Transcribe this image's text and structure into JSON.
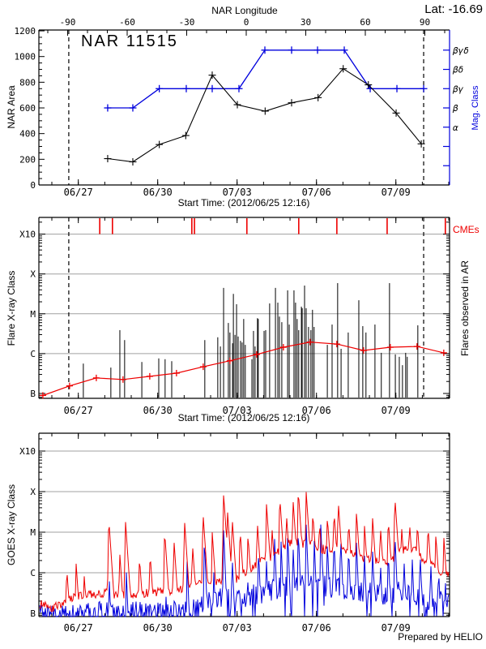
{
  "header": {
    "lat": "Lat: -16.69"
  },
  "panels": {
    "area": {
      "title": "NAR 11515",
      "top_label": "NAR Longitude",
      "ylabel": "NAR Area",
      "right_label": "Mag. Class",
      "caption": "Start Time: (2012/06/25 12:16)"
    },
    "flare": {
      "ylabel": "Flare X-ray Class",
      "right_label": "Flares observed in AR",
      "cme_label": "CMEs",
      "caption": "Start Time: (2012/06/25 12:16)"
    },
    "goes": {
      "ylabel": "GOES X-ray Class",
      "credit": "Prepared by HELIO"
    }
  },
  "colors": {
    "black": "#000000",
    "blue": "#0000dd",
    "red": "#ee0000",
    "grid": "#a0a0a0"
  },
  "time_axis": {
    "start_label": "2012/06/25 12:16",
    "span_days": 15.52,
    "major_ticks": [
      {
        "offset": 1.49,
        "label": "06/27"
      },
      {
        "offset": 4.49,
        "label": "06/30"
      },
      {
        "offset": 7.49,
        "label": "07/03"
      },
      {
        "offset": 10.49,
        "label": "07/06"
      },
      {
        "offset": 13.49,
        "label": "07/09"
      }
    ],
    "minor_first": 0.49,
    "minor_step_days": 1,
    "limb_line_offsets": [
      1.13,
      14.54
    ]
  },
  "chart_data": [
    {
      "type": "line",
      "title": "NAR 11515",
      "ylabel": "NAR Area",
      "ylim": [
        0,
        1200
      ],
      "y_major_step": 200,
      "y_minor_step": 50,
      "longitude_axis": {
        "label": "NAR Longitude",
        "ticks": [
          -90,
          -60,
          -30,
          0,
          30,
          60,
          90
        ],
        "minor_step": 10
      },
      "area_series": {
        "name": "NAR area",
        "color": "#000000",
        "offsets": [
          2.6,
          3.55,
          4.55,
          5.55,
          6.55,
          7.5,
          8.55,
          9.55,
          10.55,
          11.5,
          12.45,
          13.5,
          14.45
        ],
        "values": [
          205,
          180,
          315,
          385,
          855,
          625,
          575,
          640,
          680,
          905,
          780,
          560,
          320
        ]
      },
      "mag_series": {
        "name": "Magnetic class",
        "color": "#0000dd",
        "offsets": [
          2.6,
          3.55,
          4.55,
          5.57,
          6.55,
          7.56,
          8.54,
          9.55,
          10.53,
          11.54,
          12.52,
          13.53,
          14.54
        ],
        "values": [
          600,
          600,
          750,
          750,
          750,
          750,
          1050,
          1050,
          1050,
          1050,
          750,
          750,
          750
        ],
        "classes": [
          "β",
          "β",
          "βγ",
          "βγ",
          "βγ",
          "βγ",
          "βγδ",
          "βγδ",
          "βγδ",
          "βγδ",
          "βγ",
          "βγ",
          "βγ"
        ]
      },
      "mag_axis_ticks": [
        {
          "value": 1050,
          "label": "βγδ"
        },
        {
          "value": 900,
          "label": "βδ"
        },
        {
          "value": 750,
          "label": "βγ"
        },
        {
          "value": 600,
          "label": "β"
        },
        {
          "value": 450,
          "label": "α"
        },
        {
          "value": 300,
          "label": ""
        },
        {
          "value": 150,
          "label": ""
        }
      ]
    },
    {
      "type": "bar",
      "ylabel": "Flare X-ray Class",
      "decade_labels": [
        "B",
        "C",
        "M",
        "X",
        "X10"
      ],
      "y_range_decades": [
        -0.12,
        4.42
      ],
      "cme_offsets": [
        2.3,
        2.78,
        5.78,
        5.88,
        7.86,
        9.82,
        11.26,
        13.16,
        15.36
      ],
      "flares": [
        [
          1.68,
          0.75
        ],
        [
          2.72,
          0.65
        ],
        [
          3.06,
          1.59
        ],
        [
          3.24,
          1.34
        ],
        [
          3.89,
          0.79
        ],
        [
          4.53,
          0.88
        ],
        [
          4.77,
          0.86
        ],
        [
          5.02,
          0.81
        ],
        [
          6.27,
          1.34
        ],
        [
          6.76,
          1.41
        ],
        [
          6.86,
          1.18
        ],
        [
          6.98,
          2.65
        ],
        [
          7.16,
          1.77
        ],
        [
          7.22,
          1.53
        ],
        [
          7.32,
          1.26
        ],
        [
          7.35,
          2.5
        ],
        [
          7.41,
          1.47
        ],
        [
          7.47,
          2.24
        ],
        [
          7.53,
          1.43
        ],
        [
          7.62,
          1.32
        ],
        [
          7.68,
          1.28
        ],
        [
          7.74,
          1.87
        ],
        [
          7.8,
          1.22
        ],
        [
          8.05,
          0.86
        ],
        [
          8.11,
          1.57
        ],
        [
          8.17,
          1.18
        ],
        [
          8.26,
          1.89
        ],
        [
          8.29,
          1.87
        ],
        [
          8.51,
          1.57
        ],
        [
          8.57,
          1.59
        ],
        [
          8.72,
          2.26
        ],
        [
          8.94,
          2.65
        ],
        [
          9.03,
          2.28
        ],
        [
          9.09,
          1.93
        ],
        [
          9.18,
          1.79
        ],
        [
          9.4,
          2.59
        ],
        [
          9.46,
          1.73
        ],
        [
          9.64,
          2.59
        ],
        [
          9.7,
          2.28
        ],
        [
          9.76,
          1.87
        ],
        [
          9.82,
          1.59
        ],
        [
          9.92,
          2.18
        ],
        [
          9.95,
          2.14
        ],
        [
          10.04,
          2.71
        ],
        [
          10.1,
          2.14
        ],
        [
          10.19,
          1.67
        ],
        [
          10.28,
          1.59
        ],
        [
          10.34,
          2.1
        ],
        [
          10.4,
          1.67
        ],
        [
          10.9,
          1.22
        ],
        [
          11.08,
          1.73
        ],
        [
          11.29,
          2.77
        ],
        [
          11.42,
          1.12
        ],
        [
          11.69,
          1.53
        ],
        [
          12.09,
          2.34
        ],
        [
          12.24,
          1.69
        ],
        [
          12.36,
          1.53
        ],
        [
          12.7,
          1.73
        ],
        [
          12.94,
          1.02
        ],
        [
          13.25,
          2.77
        ],
        [
          13.47,
          0.98
        ],
        [
          13.62,
          0.92
        ],
        [
          13.74,
          0.71
        ],
        [
          13.86,
          1.02
        ],
        [
          13.92,
          0.92
        ],
        [
          14.32,
          1.71
        ]
      ],
      "index_curve": {
        "name": "daily flare index",
        "color": "#ee0000",
        "offsets": [
          0.15,
          1.16,
          2.17,
          3.18,
          4.19,
          5.2,
          6.21,
          7.22,
          8.23,
          9.24,
          10.25,
          11.26,
          12.27,
          13.28,
          14.29,
          15.3
        ],
        "decades": [
          -0.05,
          0.19,
          0.39,
          0.35,
          0.43,
          0.51,
          0.67,
          0.82,
          0.98,
          1.16,
          1.29,
          1.24,
          1.08,
          1.16,
          1.18,
          1.02
        ]
      }
    },
    {
      "type": "line",
      "ylabel": "GOES X-ray Class",
      "decade_labels": [
        "B",
        "C",
        "M",
        "X",
        "X10"
      ],
      "y_range_decades": [
        -0.08,
        4.44
      ],
      "noise_seed": 11515,
      "long_channel": {
        "name": "GOES long 1-8A",
        "color": "#ee0000",
        "envelope": [
          [
            0,
            0.25
          ],
          [
            0.5,
            0.12
          ],
          [
            1,
            0.3
          ],
          [
            1.5,
            0.42
          ],
          [
            2,
            0.48
          ],
          [
            2.5,
            0.5
          ],
          [
            3,
            0.45
          ],
          [
            3.5,
            0.45
          ],
          [
            4,
            0.5
          ],
          [
            4.5,
            0.52
          ],
          [
            5,
            0.55
          ],
          [
            5.5,
            0.62
          ],
          [
            6,
            0.7
          ],
          [
            6.5,
            0.78
          ],
          [
            7,
            0.82
          ],
          [
            7.3,
            0.75
          ],
          [
            7.6,
            0.95
          ],
          [
            8,
            1.1
          ],
          [
            8.3,
            1.25
          ],
          [
            8.6,
            1.3
          ],
          [
            9,
            1.5
          ],
          [
            9.3,
            1.65
          ],
          [
            9.6,
            1.8
          ],
          [
            10,
            1.7
          ],
          [
            10.3,
            1.75
          ],
          [
            10.6,
            1.6
          ],
          [
            11,
            1.55
          ],
          [
            11.3,
            1.6
          ],
          [
            11.6,
            1.5
          ],
          [
            12,
            1.45
          ],
          [
            12.3,
            1.35
          ],
          [
            12.6,
            1.3
          ],
          [
            13,
            1.35
          ],
          [
            13.3,
            1.25
          ],
          [
            13.6,
            1.5
          ],
          [
            13.9,
            1.6
          ],
          [
            14.2,
            1.55
          ],
          [
            14.5,
            1.35
          ],
          [
            14.8,
            1.2
          ],
          [
            15.1,
            1.05
          ],
          [
            15.52,
            0.9
          ]
        ],
        "spikes": [
          [
            1.05,
            1.15
          ],
          [
            1.4,
            1.3
          ],
          [
            1.7,
            1.05
          ],
          [
            2.64,
            2.35
          ],
          [
            3.05,
            1.55
          ],
          [
            3.27,
            2.3
          ],
          [
            3.8,
            1.4
          ],
          [
            4.2,
            1.5
          ],
          [
            4.75,
            2.05
          ],
          [
            5.1,
            1.85
          ],
          [
            5.5,
            2.32
          ],
          [
            5.8,
            1.75
          ],
          [
            6.2,
            2.5
          ],
          [
            6.55,
            2.0
          ],
          [
            6.98,
            2.95
          ],
          [
            7.12,
            2.6
          ],
          [
            7.3,
            2.4
          ],
          [
            7.6,
            2.1
          ],
          [
            7.9,
            1.95
          ],
          [
            8.25,
            2.3
          ],
          [
            8.6,
            2.7
          ],
          [
            8.8,
            2.2
          ],
          [
            9.1,
            2.9
          ],
          [
            9.35,
            2.5
          ],
          [
            9.6,
            2.85
          ],
          [
            9.8,
            3.06
          ],
          [
            10.1,
            3.0
          ],
          [
            10.35,
            2.5
          ],
          [
            10.6,
            2.3
          ],
          [
            10.9,
            2.4
          ],
          [
            11.15,
            2.55
          ],
          [
            11.31,
            2.8
          ],
          [
            11.7,
            2.3
          ],
          [
            12.0,
            2.5
          ],
          [
            12.3,
            2.2
          ],
          [
            12.6,
            2.45
          ],
          [
            12.9,
            2.2
          ],
          [
            13.2,
            2.35
          ],
          [
            13.45,
            2.9
          ],
          [
            13.7,
            2.2
          ],
          [
            14.0,
            2.3
          ],
          [
            14.3,
            2.25
          ],
          [
            14.7,
            2.2
          ],
          [
            15.0,
            1.95
          ],
          [
            15.3,
            1.9
          ]
        ]
      },
      "short_channel": {
        "name": "GOES short 0.5-4A",
        "color": "#0000dd",
        "envelope": [
          [
            0,
            -0.02
          ],
          [
            3,
            0.0
          ],
          [
            5,
            0.05
          ],
          [
            6,
            0.1
          ],
          [
            6.5,
            0.35
          ],
          [
            7,
            0.4
          ],
          [
            7.5,
            0.3
          ],
          [
            8,
            0.45
          ],
          [
            8.5,
            0.5
          ],
          [
            9,
            0.6
          ],
          [
            9.5,
            0.7
          ],
          [
            10,
            0.75
          ],
          [
            10.5,
            0.7
          ],
          [
            11,
            0.65
          ],
          [
            11.5,
            0.6
          ],
          [
            12,
            0.55
          ],
          [
            12.5,
            0.5
          ],
          [
            13,
            0.45
          ],
          [
            13.5,
            0.55
          ],
          [
            14,
            0.5
          ],
          [
            14.5,
            0.4
          ],
          [
            15,
            0.3
          ],
          [
            15.52,
            0.25
          ]
        ],
        "spikes": [
          [
            1.45,
            0.45
          ],
          [
            2.3,
            0.5
          ],
          [
            2.65,
            1.0
          ],
          [
            3.3,
            1.1
          ],
          [
            4.2,
            0.55
          ],
          [
            4.8,
            0.5
          ],
          [
            5.3,
            0.45
          ],
          [
            5.6,
            1.3
          ],
          [
            6.25,
            1.9
          ],
          [
            6.6,
            1.2
          ],
          [
            6.98,
            2.1
          ],
          [
            7.3,
            1.5
          ],
          [
            7.9,
            0.9
          ],
          [
            8.3,
            1.6
          ],
          [
            8.6,
            1.3
          ],
          [
            8.9,
            1.95
          ],
          [
            9.15,
            1.8
          ],
          [
            9.4,
            2.0
          ],
          [
            9.6,
            1.75
          ],
          [
            9.8,
            2.1
          ],
          [
            10.1,
            2.2
          ],
          [
            10.4,
            1.9
          ],
          [
            10.65,
            2.22
          ],
          [
            10.9,
            1.8
          ],
          [
            11.15,
            1.9
          ],
          [
            11.4,
            2.0
          ],
          [
            11.7,
            1.7
          ],
          [
            12.0,
            1.8
          ],
          [
            12.3,
            1.5
          ],
          [
            12.6,
            1.7
          ],
          [
            12.9,
            1.4
          ],
          [
            13.2,
            1.6
          ],
          [
            13.45,
            2.05
          ],
          [
            13.8,
            1.3
          ],
          [
            14.1,
            1.5
          ],
          [
            14.4,
            1.6
          ],
          [
            14.8,
            1.4
          ],
          [
            15.1,
            1.2
          ],
          [
            15.35,
            1.0
          ]
        ]
      }
    }
  ]
}
